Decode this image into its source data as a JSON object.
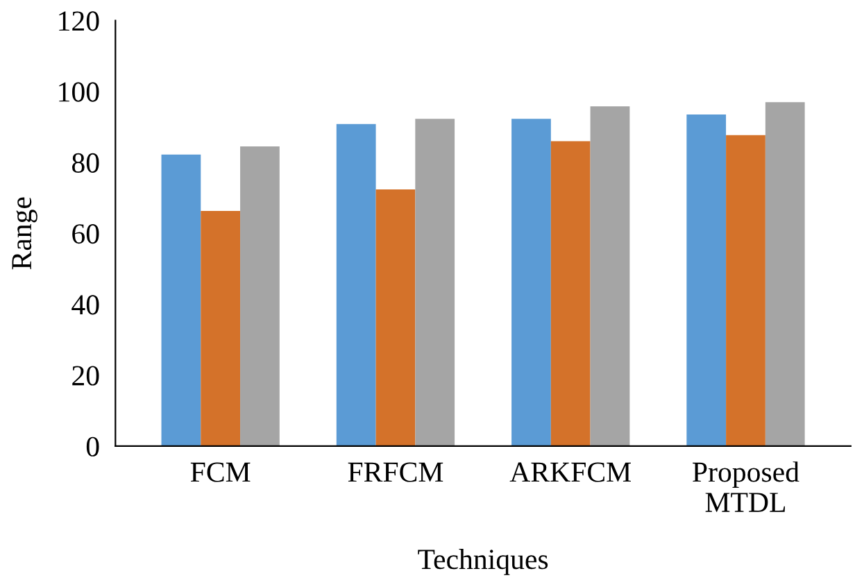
{
  "chart_data": {
    "type": "bar",
    "xlabel": "Techniques",
    "ylabel": "Range",
    "categories": [
      "FCM",
      "FRFCM",
      "ARKFCM",
      "Proposed\nMTDL"
    ],
    "series": [
      {
        "color": "#5b9bd5",
        "values": [
          82.2,
          90.8,
          92.3,
          93.5
        ]
      },
      {
        "color": "#d4722a",
        "values": [
          66.3,
          72.4,
          86.0,
          87.7
        ]
      },
      {
        "color": "#a5a5a5",
        "values": [
          84.5,
          92.3,
          95.8,
          97.0
        ]
      }
    ],
    "ylim": [
      0,
      120
    ],
    "yticks": [
      0,
      20,
      40,
      60,
      80,
      100,
      120
    ],
    "grid": false
  }
}
